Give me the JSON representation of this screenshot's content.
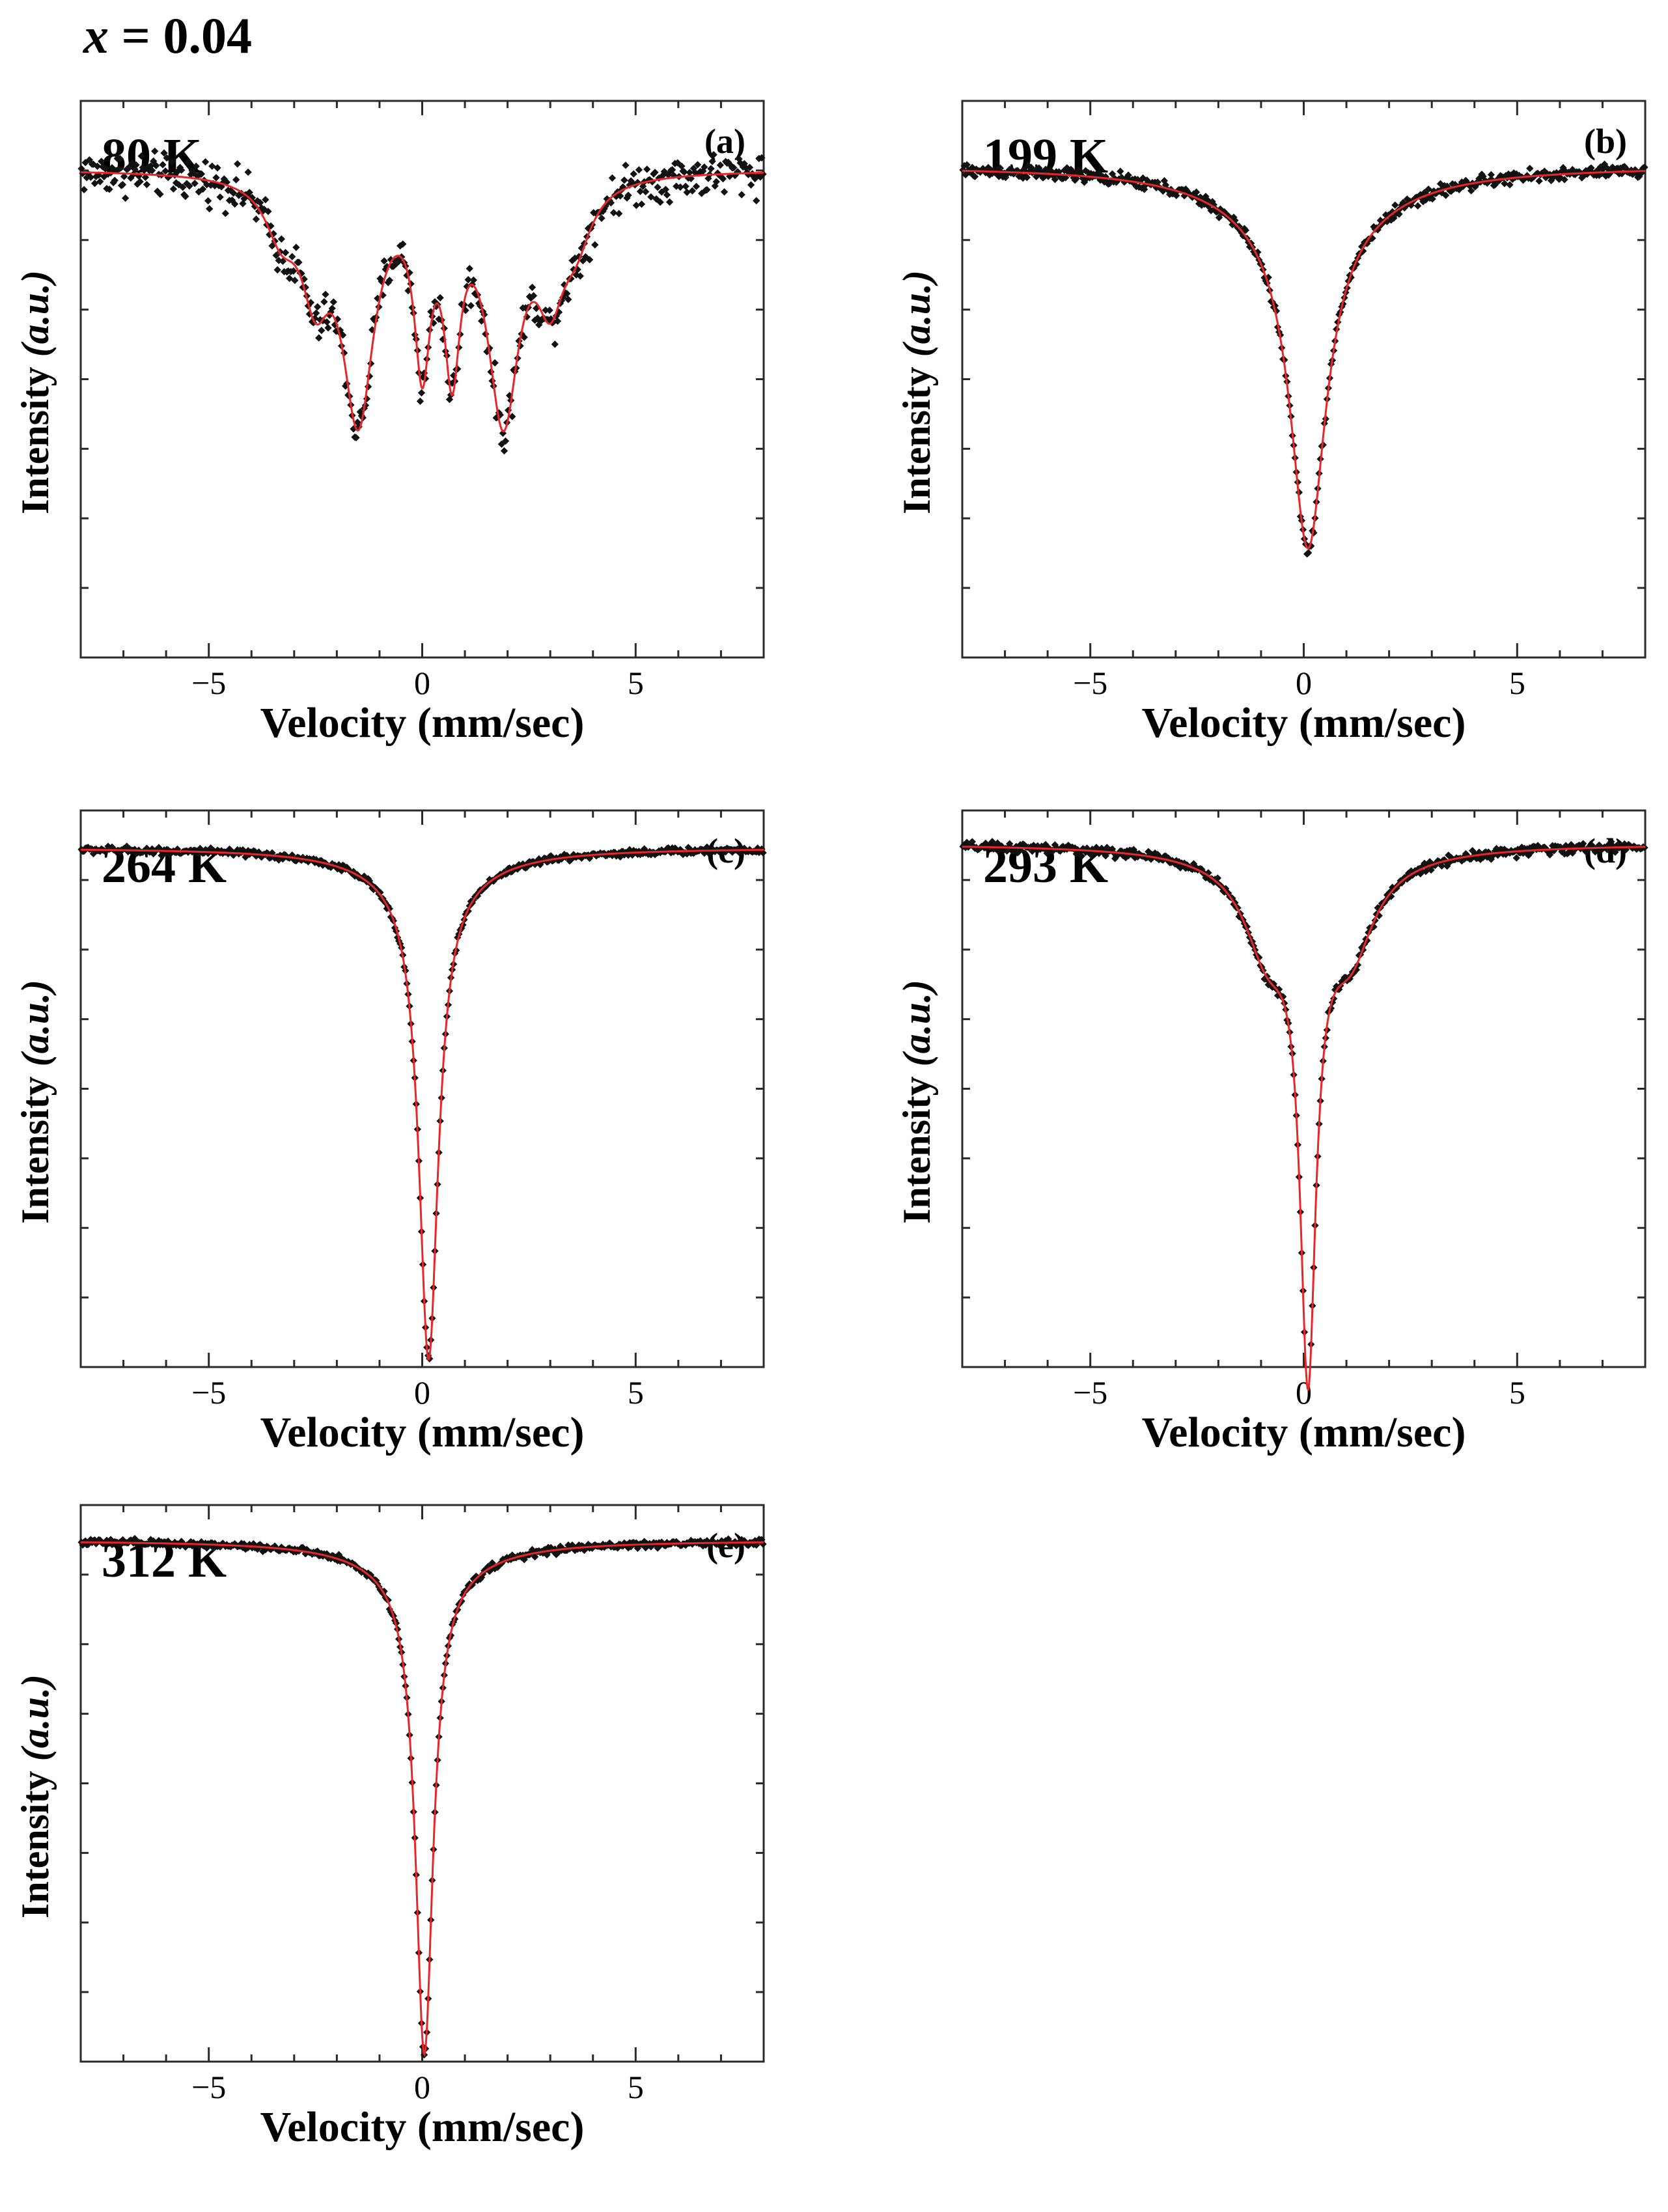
{
  "figure_title": {
    "variable": "x",
    "rest": " = 0.04"
  },
  "chart_data": [
    {
      "type": "scatter",
      "panel": "(a)",
      "temperature": "80 K",
      "xlabel": "Velocity  (mm/sec)",
      "ylabel": [
        "Intensity",
        "(a.u.)"
      ],
      "xlim": [
        -8,
        8
      ],
      "ylim": [
        0.5,
        1.07
      ],
      "xticks": [
        -5,
        0,
        5
      ],
      "xtick_labels": [
        "−5",
        "0",
        "5"
      ],
      "yticks_labeled": false,
      "series": [
        {
          "name": "data points",
          "kind": "markers",
          "noise": 0.018
        },
        {
          "name": "fit",
          "kind": "line",
          "color": "#e8262a"
        }
      ],
      "components": [
        {
          "center": -1.5,
          "depth": 0.24,
          "width": 0.9
        },
        {
          "center": 1.9,
          "depth": 0.24,
          "width": 0.9
        },
        {
          "center": -2.5,
          "depth": 0.1,
          "width": 0.8
        },
        {
          "center": 3.0,
          "depth": 0.1,
          "width": 0.8
        },
        {
          "center": 0.0,
          "depth": 0.17,
          "width": 0.45
        },
        {
          "center": 0.7,
          "depth": 0.17,
          "width": 0.45
        },
        {
          "center": -3.3,
          "depth": 0.05,
          "width": 0.9
        },
        {
          "center": 3.6,
          "depth": 0.05,
          "width": 0.9
        }
      ]
    },
    {
      "type": "scatter",
      "panel": "(b)",
      "temperature": "199 K",
      "xlabel": "Velocity  (mm/sec)",
      "ylabel": [
        "Intensity",
        "(a.u.)"
      ],
      "xlim": [
        -8,
        8
      ],
      "ylim": [
        0.55,
        1.06
      ],
      "xticks": [
        -5,
        0,
        5
      ],
      "xtick_labels": [
        "−5",
        "0",
        "5"
      ],
      "yticks_labeled": false,
      "series": [
        {
          "name": "data points",
          "kind": "markers",
          "noise": 0.005
        },
        {
          "name": "fit",
          "kind": "line",
          "color": "#e8262a"
        }
      ],
      "components": [
        {
          "center": 0.1,
          "depth": 0.3,
          "width": 1.0
        },
        {
          "center": 0.1,
          "depth": 0.05,
          "width": 4.0
        }
      ]
    },
    {
      "type": "scatter",
      "panel": "(c)",
      "temperature": "264 K",
      "xlabel": "Velocity  (mm/sec)",
      "ylabel": [
        "Intensity",
        "(a.u.)"
      ],
      "xlim": [
        -8,
        8
      ],
      "ylim": [
        0.31,
        1.05
      ],
      "xticks": [
        -5,
        0,
        5
      ],
      "xtick_labels": [
        "−5",
        "0",
        "5"
      ],
      "yticks_labeled": false,
      "series": [
        {
          "name": "data points",
          "kind": "markers",
          "noise": 0.004
        },
        {
          "name": "fit",
          "kind": "line",
          "color": "#e8262a"
        }
      ],
      "components": [
        {
          "center": 0.15,
          "depth": 0.64,
          "width": 0.55
        },
        {
          "center": 0.15,
          "depth": 0.04,
          "width": 3.2
        }
      ]
    },
    {
      "type": "scatter",
      "panel": "(d)",
      "temperature": "293 K",
      "xlabel": "Velocity  (mm/sec)",
      "ylabel": [
        "Intensity",
        "(a.u.)"
      ],
      "xlim": [
        -8,
        8
      ],
      "ylim": [
        0.22,
        1.05
      ],
      "xticks": [
        -5,
        0,
        5
      ],
      "xtick_labels": [
        "−5",
        "0",
        "5"
      ],
      "yticks_labeled": false,
      "series": [
        {
          "name": "data points",
          "kind": "markers",
          "noise": 0.006
        },
        {
          "name": "fit",
          "kind": "line",
          "color": "#e8262a"
        }
      ],
      "components": [
        {
          "center": 0.1,
          "depth": 0.7,
          "width": 0.45
        },
        {
          "center": -0.85,
          "depth": 0.12,
          "width": 1.3
        },
        {
          "center": 1.1,
          "depth": 0.12,
          "width": 1.3
        },
        {
          "center": 0.1,
          "depth": 0.04,
          "width": 3.6
        }
      ]
    },
    {
      "type": "scatter",
      "panel": "(e)",
      "temperature": "312 K",
      "xlabel": "Velocity  (mm/sec)",
      "ylabel": [
        "Intensity",
        "(a.u.)"
      ],
      "xlim": [
        -8,
        8
      ],
      "ylim": [
        0.27,
        1.05
      ],
      "xticks": [
        -5,
        0,
        5
      ],
      "xtick_labels": [
        "−5",
        "0",
        "5"
      ],
      "yticks_labeled": false,
      "series": [
        {
          "name": "data points",
          "kind": "markers",
          "noise": 0.004
        },
        {
          "name": "fit",
          "kind": "line",
          "color": "#e8262a"
        }
      ],
      "components": [
        {
          "center": 0.05,
          "depth": 0.68,
          "width": 0.5
        },
        {
          "center": 0.05,
          "depth": 0.04,
          "width": 3.2
        }
      ]
    }
  ]
}
